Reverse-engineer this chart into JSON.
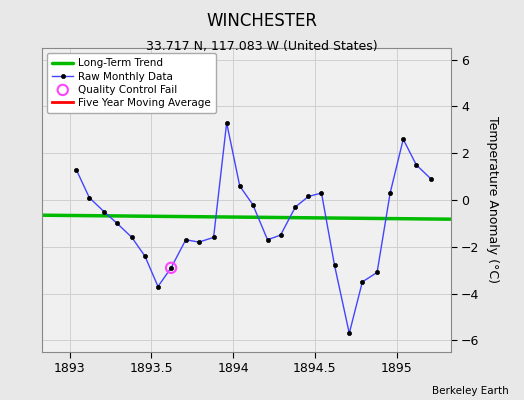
{
  "title": "WINCHESTER",
  "subtitle": "33.717 N, 117.083 W (United States)",
  "credit": "Berkeley Earth",
  "ylabel": "Temperature Anomaly (°C)",
  "xlim": [
    1892.83,
    1895.33
  ],
  "ylim": [
    -6.5,
    6.5
  ],
  "yticks": [
    -6,
    -4,
    -2,
    0,
    2,
    4,
    6
  ],
  "xticks": [
    1893,
    1893.5,
    1894,
    1894.5,
    1895
  ],
  "raw_x": [
    1893.04,
    1893.12,
    1893.21,
    1893.29,
    1893.38,
    1893.46,
    1893.54,
    1893.62,
    1893.71,
    1893.79,
    1893.88,
    1893.96,
    1894.04,
    1894.12,
    1894.21,
    1894.29,
    1894.38,
    1894.46,
    1894.54,
    1894.62,
    1894.71,
    1894.79,
    1894.88,
    1894.96,
    1895.04,
    1895.12,
    1895.21
  ],
  "raw_y": [
    1.3,
    0.1,
    -0.5,
    -1.0,
    -1.6,
    -2.4,
    -3.7,
    -2.9,
    -1.7,
    -1.8,
    -1.6,
    3.3,
    0.6,
    -0.2,
    -1.7,
    -1.5,
    -0.3,
    0.15,
    0.3,
    -2.8,
    -5.7,
    -3.5,
    -3.1,
    0.3,
    2.6,
    1.5,
    0.9
  ],
  "qc_fail_x": [
    1893.62
  ],
  "qc_fail_y": [
    -2.9
  ],
  "trend_x": [
    1892.83,
    1895.33
  ],
  "trend_y": [
    -0.65,
    -0.82
  ],
  "raw_line_color": "#4444ff",
  "trend_color": "#00bb00",
  "moving_avg_color": "#ff0000",
  "qc_color": "#ff44ff",
  "background_color": "#e8e8e8",
  "plot_bg_color": "#f0f0f0",
  "grid_color": "#d0d0d0",
  "title_fontsize": 12,
  "subtitle_fontsize": 9,
  "tick_fontsize": 9,
  "ylabel_fontsize": 9
}
